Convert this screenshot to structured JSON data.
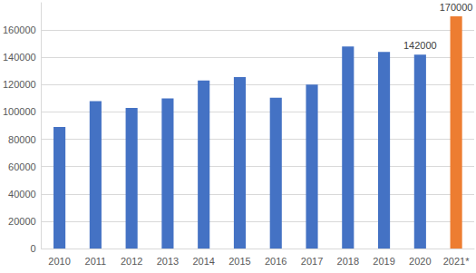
{
  "chart_data": {
    "type": "bar",
    "categories": [
      "2010",
      "2011",
      "2012",
      "2013",
      "2014",
      "2015",
      "2016",
      "2017",
      "2018",
      "2019",
      "2020",
      "2021*"
    ],
    "values": [
      89000,
      108000,
      103000,
      110000,
      123000,
      125500,
      110500,
      120000,
      148000,
      144000,
      142000,
      170000
    ],
    "colors": [
      "#4472c4",
      "#4472c4",
      "#4472c4",
      "#4472c4",
      "#4472c4",
      "#4472c4",
      "#4472c4",
      "#4472c4",
      "#4472c4",
      "#4472c4",
      "#4472c4",
      "#ed7d31"
    ],
    "data_labels": true,
    "value_labels": [
      null,
      null,
      null,
      null,
      null,
      null,
      null,
      null,
      null,
      null,
      "142000",
      "170000"
    ],
    "ylim": [
      0,
      180000
    ],
    "yticks": [
      0,
      20000,
      40000,
      60000,
      80000,
      100000,
      120000,
      140000,
      160000
    ],
    "grid": true
  }
}
